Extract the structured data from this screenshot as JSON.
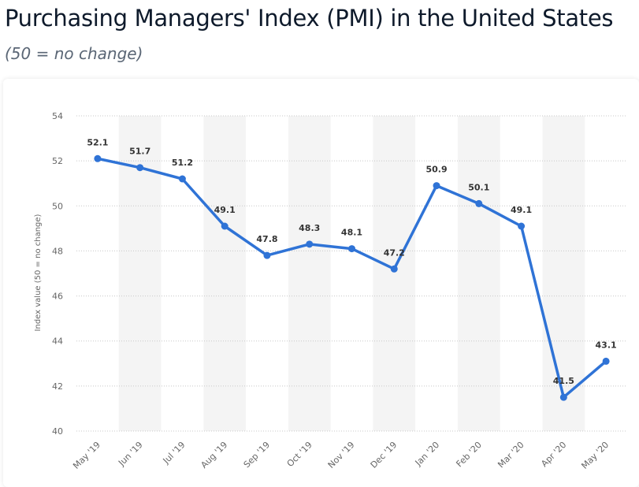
{
  "header": {
    "title": "Purchasing Managers' Index (PMI) in the United States",
    "subtitle": "(50 = no change)"
  },
  "chart_data": {
    "type": "line",
    "title": "Purchasing Managers' Index (PMI) in the United States",
    "subtitle": "(50 = no change)",
    "xlabel": "",
    "ylabel": "Index value (50 = no change)",
    "categories": [
      "May '19",
      "Jun '19",
      "Jul '19",
      "Aug '19",
      "Sep '19",
      "Oct '19",
      "Nov '19",
      "Dec '19",
      "Jan '20",
      "Feb '20",
      "Mar '20",
      "Apr '20",
      "May '20"
    ],
    "series": [
      {
        "values": [
          52.1,
          51.7,
          51.2,
          49.1,
          47.8,
          48.3,
          48.1,
          47.2,
          50.9,
          50.1,
          49.1,
          41.5,
          43.1
        ]
      }
    ],
    "ylim": [
      40,
      54
    ],
    "yticks": [
      40,
      42,
      44,
      46,
      48,
      50,
      52,
      54
    ],
    "grid": true,
    "data_labels": true,
    "legend": "none",
    "colors": {
      "line": "#2f73d6",
      "band": "#f4f4f4",
      "grid": "#c8c8c8"
    }
  }
}
